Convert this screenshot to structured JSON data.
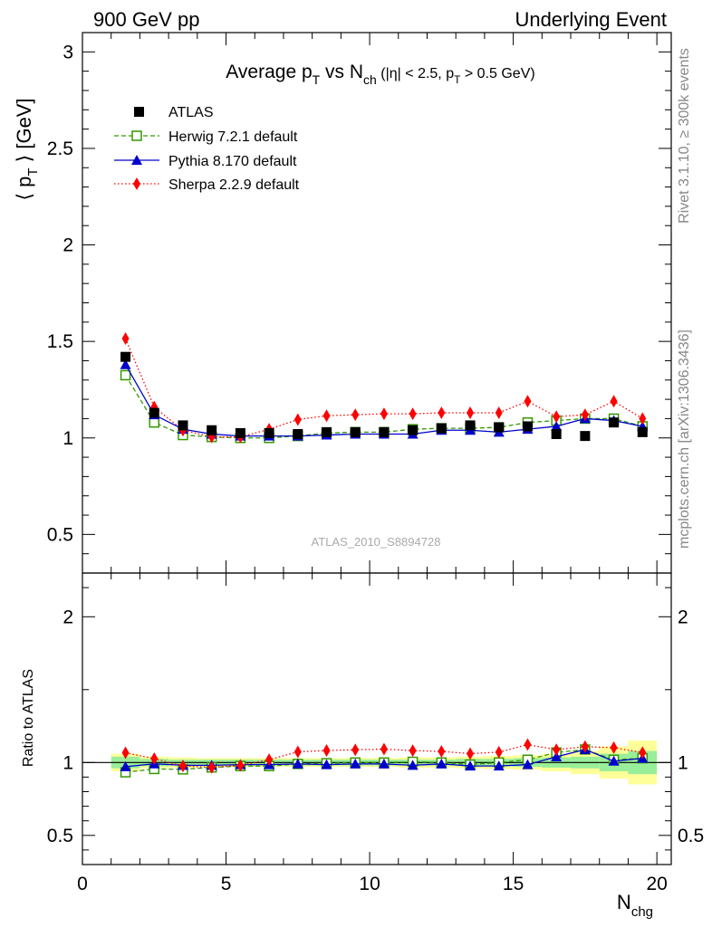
{
  "header": {
    "left": "900 GeV pp",
    "right": "Underlying Event",
    "side_top": "Rivet 3.1.10, ≥ 300k events",
    "side_bottom": "mcplots.cern.ch [arXiv:1306.3436]",
    "analysis_id": "ATLAS_2010_S8894728"
  },
  "chart_data": {
    "type": "scatter",
    "title": {
      "prefix": "Average p",
      "sub1": "T",
      "mid": " vs N",
      "sub2": "ch",
      "cut_a": " (|η| < 2.5, p",
      "cut_sub": "T",
      "cut_b": " > 0.5 GeV)"
    },
    "ylabel": {
      "pre": "⟨ p",
      "sub": "T",
      "post": " ⟩ [GeV]"
    },
    "ratio_ylabel": "Ratio to ATLAS",
    "xlabel": {
      "main": "N",
      "sub": "chg"
    },
    "xlim": [
      0,
      20.5
    ],
    "ylim": [
      0.3,
      3.1
    ],
    "ratio_ylim": [
      0.3,
      2.3
    ],
    "x_ticks": [
      "0",
      "5",
      "10",
      "15",
      "20"
    ],
    "y_ticks": [
      "0.5",
      "1",
      "1.5",
      "2",
      "2.5",
      "3"
    ],
    "ratio_ticks": [
      "0.5",
      "1",
      "2"
    ],
    "grid": false,
    "legend_position": "top-left",
    "x": [
      1.5,
      2.5,
      3.5,
      4.5,
      5.5,
      6.5,
      7.5,
      8.5,
      9.5,
      10.5,
      11.5,
      12.5,
      13.5,
      14.5,
      15.5,
      16.5,
      17.5,
      18.5,
      19.5
    ],
    "data": {
      "name": "ATLAS",
      "values": [
        1.42,
        1.13,
        1.065,
        1.04,
        1.025,
        1.025,
        1.02,
        1.03,
        1.03,
        1.03,
        1.04,
        1.05,
        1.065,
        1.055,
        1.06,
        1.02,
        1.01,
        1.08,
        1.03
      ],
      "band_inner": [
        0.04,
        0.025,
        0.02,
        0.02,
        0.02,
        0.02,
        0.02,
        0.02,
        0.02,
        0.02,
        0.02,
        0.02,
        0.025,
        0.025,
        0.03,
        0.035,
        0.04,
        0.06,
        0.08
      ],
      "band_outer": [
        0.06,
        0.04,
        0.035,
        0.03,
        0.03,
        0.03,
        0.03,
        0.03,
        0.03,
        0.03,
        0.035,
        0.035,
        0.04,
        0.045,
        0.05,
        0.06,
        0.08,
        0.11,
        0.15
      ]
    },
    "series": [
      {
        "name": "Herwig 7.2.1 default",
        "color": "#339900",
        "marker": "open-square",
        "line": "dashed",
        "values": [
          1.325,
          1.08,
          1.015,
          1.005,
          1.0,
          1.0,
          1.01,
          1.025,
          1.03,
          1.03,
          1.045,
          1.05,
          1.05,
          1.055,
          1.08,
          1.09,
          1.1,
          1.1,
          1.06
        ]
      },
      {
        "name": "Pythia 8.170 default",
        "color": "#0000cc",
        "marker": "filled-triangle",
        "line": "solid",
        "values": [
          1.38,
          1.12,
          1.045,
          1.02,
          1.01,
          1.01,
          1.01,
          1.015,
          1.02,
          1.02,
          1.02,
          1.04,
          1.04,
          1.03,
          1.045,
          1.06,
          1.1,
          1.09,
          1.06
        ]
      },
      {
        "name": "Sherpa 2.2.9 default",
        "color": "#ff0000",
        "marker": "filled-diamond",
        "line": "dotted",
        "values": [
          1.515,
          1.16,
          1.04,
          1.005,
          1.005,
          1.045,
          1.095,
          1.115,
          1.12,
          1.125,
          1.125,
          1.13,
          1.13,
          1.13,
          1.19,
          1.11,
          1.12,
          1.19,
          1.1
        ]
      }
    ]
  }
}
